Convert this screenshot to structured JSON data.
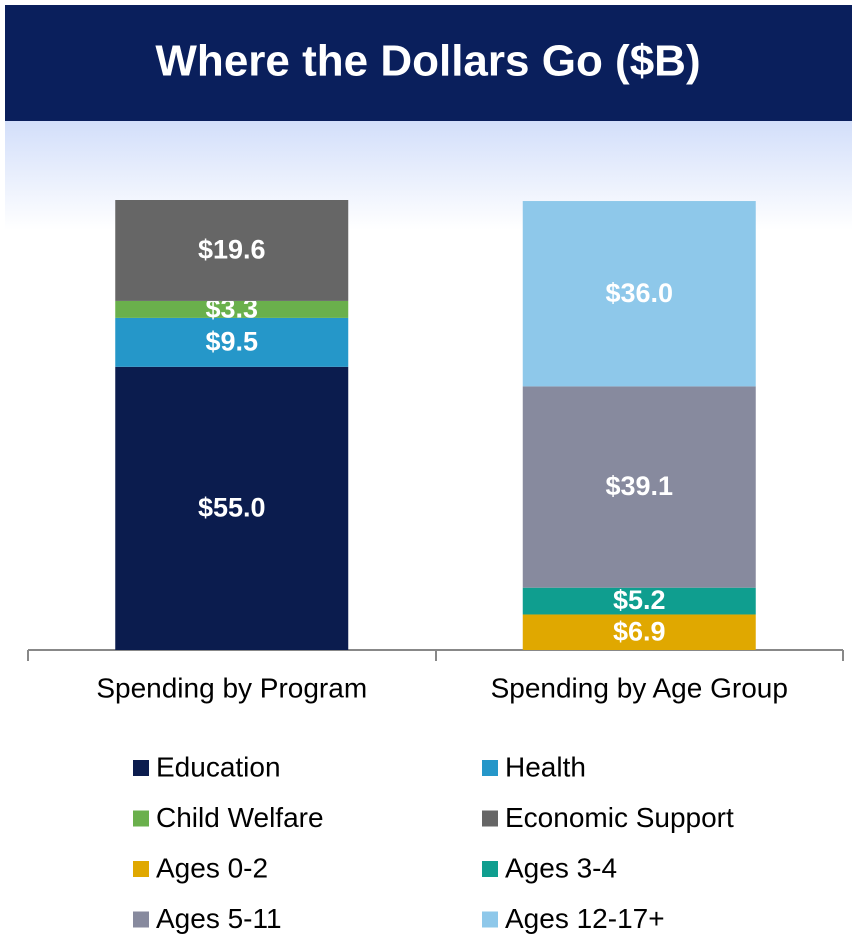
{
  "chart_data": {
    "type": "stacked_bar",
    "title": "Where the Dollars Go ($B)",
    "categories": [
      "Spending by Program",
      "Spending by Age Group"
    ],
    "series": [
      {
        "name": "Education",
        "color": "#0b1c4e",
        "values": [
          55.0,
          null
        ],
        "value_labels": [
          "$55.0",
          null
        ]
      },
      {
        "name": "Health",
        "color": "#2597c9",
        "values": [
          9.5,
          null
        ],
        "value_labels": [
          "$9.5",
          null
        ]
      },
      {
        "name": "Child Welfare",
        "color": "#6ab04c",
        "values": [
          3.3,
          null
        ],
        "value_labels": [
          "$3.3",
          null
        ]
      },
      {
        "name": "Economic Support",
        "color": "#666666",
        "values": [
          19.6,
          null
        ],
        "value_labels": [
          "$19.6",
          null
        ]
      },
      {
        "name": "Ages 0-2",
        "color": "#e0a800",
        "values": [
          null,
          6.9
        ],
        "value_labels": [
          null,
          "$6.9"
        ]
      },
      {
        "name": "Ages 3-4",
        "color": "#0f9e8f",
        "values": [
          null,
          5.2
        ],
        "value_labels": [
          null,
          "$5.2"
        ]
      },
      {
        "name": "Ages 5-11",
        "color": "#878a9e",
        "values": [
          null,
          39.1
        ],
        "value_labels": [
          null,
          "$39.1"
        ]
      },
      {
        "name": "Ages 12-17+",
        "color": "#8ec8ea",
        "values": [
          null,
          36.0
        ],
        "value_labels": [
          null,
          "$36.0"
        ]
      }
    ]
  }
}
